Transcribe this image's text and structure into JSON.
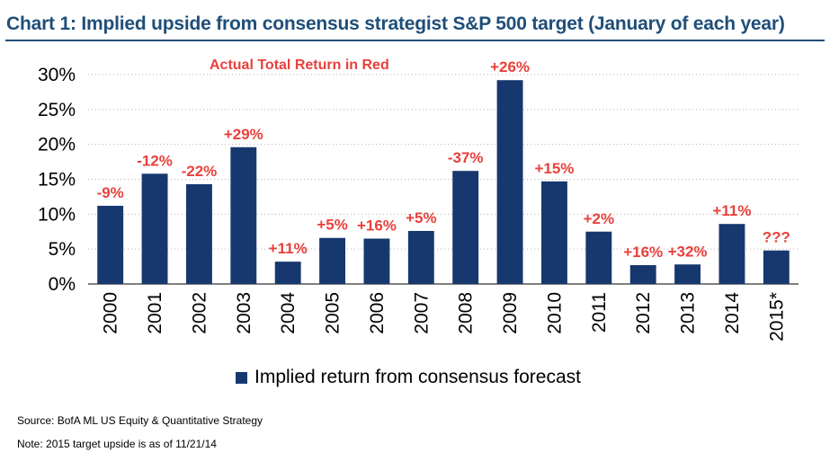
{
  "title": "Chart 1: Implied upside from consensus strategist S&P 500 target (January of each year)",
  "source": "Source: BofA ML US Equity & Quantitative Strategy",
  "note": "Note: 2015 target upside is as of 11/21/14",
  "colors": {
    "bar": "#17386e",
    "label": "#e8413c",
    "title": "#1f4e79",
    "grid": "#b0b0b0"
  },
  "chart_data": {
    "type": "bar",
    "title": "Chart 1: Implied upside from consensus strategist S&P 500 target (January of each year)",
    "categories": [
      "2000",
      "2001",
      "2002",
      "2003",
      "2004",
      "2005",
      "2006",
      "2007",
      "2008",
      "2009",
      "2010",
      "2011",
      "2012",
      "2013",
      "2014",
      "2015*"
    ],
    "series": [
      {
        "name": "Implied return from consensus forecast",
        "values": [
          11.2,
          15.8,
          14.3,
          19.6,
          3.2,
          6.6,
          6.5,
          7.6,
          16.2,
          29.2,
          14.7,
          7.5,
          2.7,
          2.8,
          8.6,
          4.8
        ]
      }
    ],
    "data_labels": [
      "-9%",
      "-12%",
      "-22%",
      "+29%",
      "+11%",
      "+5%",
      "+16%",
      "+5%",
      "-37%",
      "+26%",
      "+15%",
      "+2%",
      "+16%",
      "+32%",
      "+11%",
      "???"
    ],
    "annotation": "Actual Total Return in Red",
    "yticks": [
      "0%",
      "5%",
      "10%",
      "15%",
      "20%",
      "25%",
      "30%"
    ],
    "ylim": [
      0,
      30
    ],
    "grid": "horizontal dotted",
    "legend": "bottom-center"
  }
}
